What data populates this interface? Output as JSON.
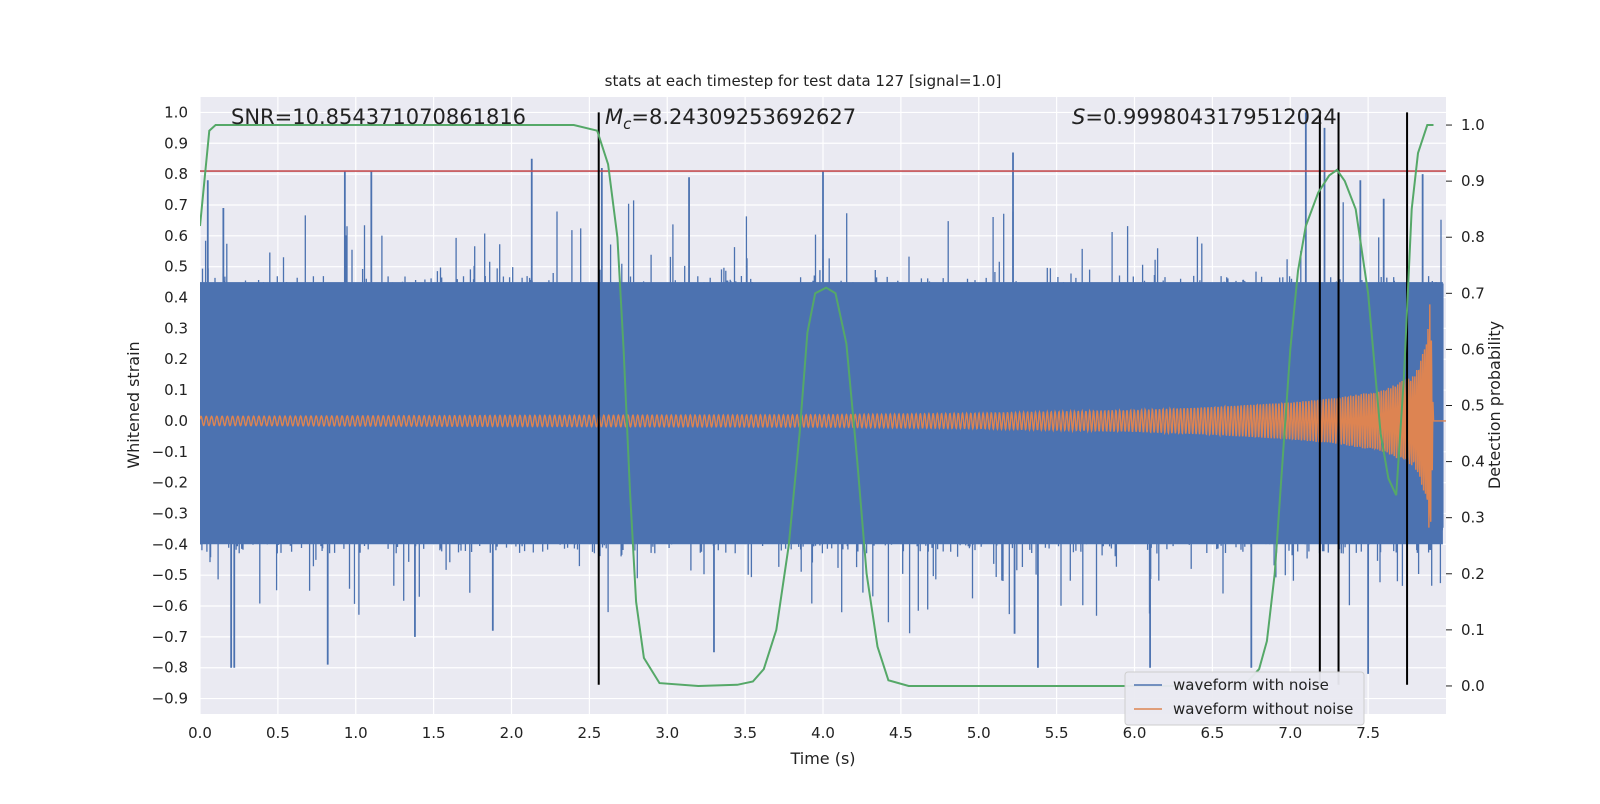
{
  "chart_data": {
    "type": "line",
    "title": "stats at each timestep for test data 127 [signal=1.0]",
    "xlabel": "Time (s)",
    "ylabel": "Whitened strain",
    "y2label": "Detection probability",
    "xlim": [
      0.0,
      8.0
    ],
    "ylim": [
      -0.95,
      1.05
    ],
    "y2lim": [
      -0.05,
      1.05
    ],
    "xticks": [
      "0.0",
      "0.5",
      "1.0",
      "1.5",
      "2.0",
      "2.5",
      "3.0",
      "3.5",
      "4.0",
      "4.5",
      "5.0",
      "5.5",
      "6.0",
      "6.5",
      "7.0",
      "7.5"
    ],
    "yticks": [
      "1.0",
      "0.9",
      "0.8",
      "0.7",
      "0.6",
      "0.5",
      "0.4",
      "0.3",
      "0.2",
      "0.1",
      "0.0",
      "−0.1",
      "−0.2",
      "−0.3",
      "−0.4",
      "−0.5",
      "−0.6",
      "−0.7",
      "−0.8",
      "−0.9"
    ],
    "y2ticks": [
      "1.0",
      "0.9",
      "0.8",
      "0.7",
      "0.6",
      "0.5",
      "0.4",
      "0.3",
      "0.2",
      "0.1",
      "0.0"
    ],
    "annotations": {
      "snr": "SNR=10.854371070861816",
      "mc_symbol": "M",
      "mc_sub": "c",
      "mc_value": "=8.24309253692627",
      "s_symbol": "S",
      "s_value": "=0.9998043179512024"
    },
    "threshold_y": 0.81,
    "vertical_markers_x": [
      2.56,
      7.19,
      7.31,
      7.75
    ],
    "series": [
      {
        "name": "waveform with noise",
        "color": "#4c72b0",
        "envelope_upper": [
          [
            0,
            0.45
          ],
          [
            1,
            0.45
          ],
          [
            2,
            0.45
          ],
          [
            3,
            0.45
          ],
          [
            4,
            0.45
          ],
          [
            5,
            0.45
          ],
          [
            6,
            0.45
          ],
          [
            7,
            0.45
          ],
          [
            8,
            0.45
          ]
        ],
        "envelope_lower": [
          [
            0,
            -0.4
          ],
          [
            8,
            -0.4
          ]
        ],
        "peaks_upper": [
          [
            0.05,
            0.78
          ],
          [
            0.15,
            0.69
          ],
          [
            0.93,
            0.81
          ],
          [
            1.1,
            0.81
          ],
          [
            2.13,
            0.85
          ],
          [
            2.58,
            0.82
          ],
          [
            3.14,
            0.79
          ],
          [
            4.0,
            0.81
          ],
          [
            5.22,
            0.87
          ],
          [
            7.1,
            1.0
          ],
          [
            7.22,
            0.95
          ],
          [
            7.45,
            0.78
          ],
          [
            7.6,
            0.72
          ],
          [
            7.85,
            0.8
          ]
        ],
        "peaks_lower": [
          [
            0.2,
            -0.8
          ],
          [
            0.22,
            -0.8
          ],
          [
            0.82,
            -0.79
          ],
          [
            1.38,
            -0.7
          ],
          [
            1.88,
            -0.68
          ],
          [
            3.3,
            -0.75
          ],
          [
            5.23,
            -0.69
          ],
          [
            5.38,
            -0.8
          ],
          [
            6.1,
            -0.8
          ],
          [
            6.75,
            -0.8
          ],
          [
            7.5,
            -0.82
          ]
        ]
      },
      {
        "name": "waveform without noise",
        "color": "#dd8452",
        "amplitude_envelope": [
          [
            0,
            0.015
          ],
          [
            2,
            0.018
          ],
          [
            4,
            0.02
          ],
          [
            5,
            0.025
          ],
          [
            6,
            0.035
          ],
          [
            6.5,
            0.045
          ],
          [
            7,
            0.06
          ],
          [
            7.3,
            0.075
          ],
          [
            7.6,
            0.1
          ],
          [
            7.8,
            0.15
          ],
          [
            7.87,
            0.25
          ],
          [
            7.9,
            0.4
          ],
          [
            7.92,
            0.0
          ],
          [
            8,
            0.0
          ]
        ]
      },
      {
        "name": "Detection probability",
        "axis": "right",
        "color": "#55a868",
        "points": [
          [
            0.0,
            0.82
          ],
          [
            0.06,
            0.99
          ],
          [
            0.1,
            1.0
          ],
          [
            2.4,
            1.0
          ],
          [
            2.55,
            0.99
          ],
          [
            2.62,
            0.93
          ],
          [
            2.68,
            0.8
          ],
          [
            2.72,
            0.6
          ],
          [
            2.76,
            0.35
          ],
          [
            2.8,
            0.15
          ],
          [
            2.85,
            0.05
          ],
          [
            2.95,
            0.005
          ],
          [
            3.2,
            0.0
          ],
          [
            3.45,
            0.002
          ],
          [
            3.55,
            0.008
          ],
          [
            3.62,
            0.03
          ],
          [
            3.7,
            0.1
          ],
          [
            3.78,
            0.25
          ],
          [
            3.85,
            0.45
          ],
          [
            3.9,
            0.63
          ],
          [
            3.95,
            0.7
          ],
          [
            4.02,
            0.71
          ],
          [
            4.08,
            0.7
          ],
          [
            4.15,
            0.61
          ],
          [
            4.22,
            0.4
          ],
          [
            4.28,
            0.2
          ],
          [
            4.35,
            0.07
          ],
          [
            4.42,
            0.01
          ],
          [
            4.55,
            0.0
          ],
          [
            6.7,
            0.0
          ],
          [
            6.8,
            0.03
          ],
          [
            6.85,
            0.08
          ],
          [
            6.9,
            0.2
          ],
          [
            6.95,
            0.4
          ],
          [
            7.0,
            0.6
          ],
          [
            7.05,
            0.74
          ],
          [
            7.1,
            0.82
          ],
          [
            7.18,
            0.88
          ],
          [
            7.25,
            0.91
          ],
          [
            7.3,
            0.92
          ],
          [
            7.35,
            0.9
          ],
          [
            7.42,
            0.85
          ],
          [
            7.5,
            0.7
          ],
          [
            7.58,
            0.45
          ],
          [
            7.63,
            0.37
          ],
          [
            7.68,
            0.34
          ],
          [
            7.73,
            0.55
          ],
          [
            7.78,
            0.85
          ],
          [
            7.82,
            0.95
          ],
          [
            7.88,
            1.0
          ],
          [
            7.92,
            1.0
          ]
        ]
      }
    ],
    "legend": [
      "waveform with noise",
      "waveform without noise"
    ],
    "legend_position": "bottom-right",
    "grid": true
  }
}
